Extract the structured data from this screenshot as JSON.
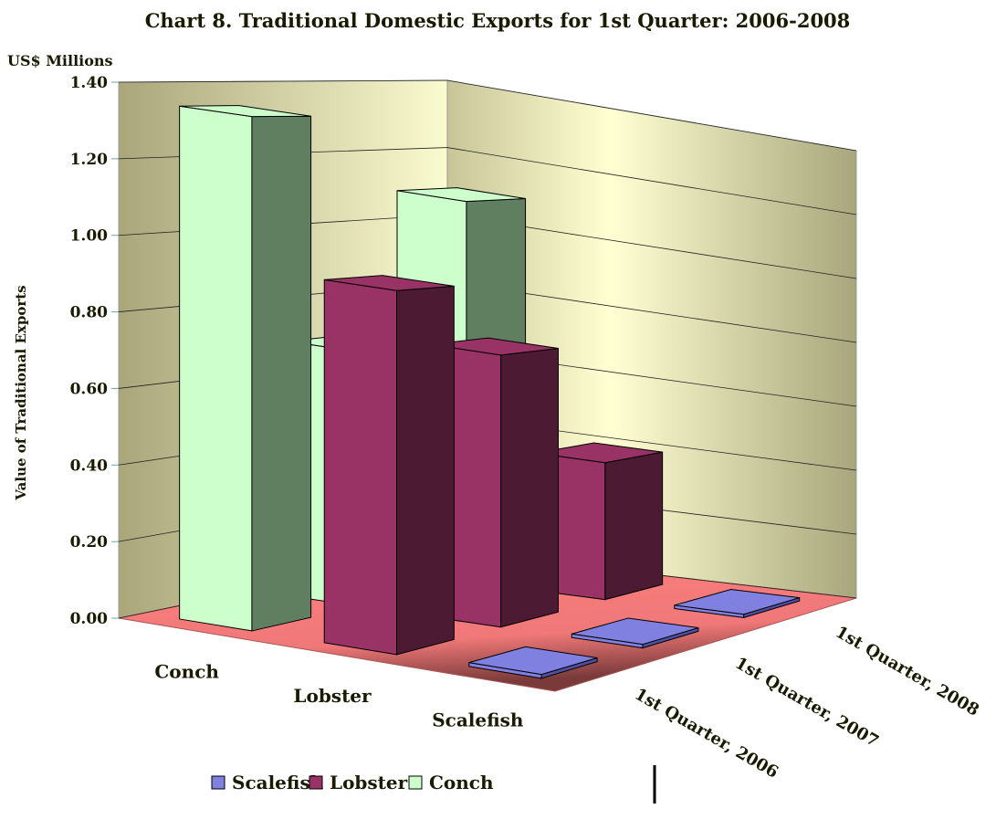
{
  "chart_data": {
    "type": "bar3d",
    "title": "Chart 8. Traditional Domestic Exports for 1st Quarter: 2006-2008",
    "unit_label": "US$ Millions",
    "y_label": "Value of Traditional Exports",
    "categories": [
      "1st Quarter, 2006",
      "1st Quarter, 2007",
      "1st Quarter, 2008"
    ],
    "series": [
      {
        "name": "Conch",
        "color": "#ccffcc",
        "side_color": "#5f7f60",
        "values": [
          1.35,
          0.7,
          1.1
        ]
      },
      {
        "name": "Lobster",
        "color": "#993366",
        "side_color": "#4d1a33",
        "values": [
          0.95,
          0.75,
          0.4
        ]
      },
      {
        "name": "Scalefish",
        "color": "#8080e0",
        "side_color": "#5050a0",
        "values": [
          0.01,
          0.01,
          0.01
        ]
      }
    ],
    "ylim": [
      0,
      1.4
    ],
    "yticks": [
      {
        "value": 0,
        "label": "0.00"
      },
      {
        "value": 0.2,
        "label": "0.20"
      },
      {
        "value": 0.4,
        "label": "0.40"
      },
      {
        "value": 0.6,
        "label": "0.60"
      },
      {
        "value": 0.8,
        "label": "0.80"
      },
      {
        "value": 1.0,
        "label": "1.00"
      },
      {
        "value": 1.2,
        "label": "1.20"
      },
      {
        "value": 1.4,
        "label": "1.40"
      }
    ],
    "grid": true,
    "legend": "bottom"
  }
}
